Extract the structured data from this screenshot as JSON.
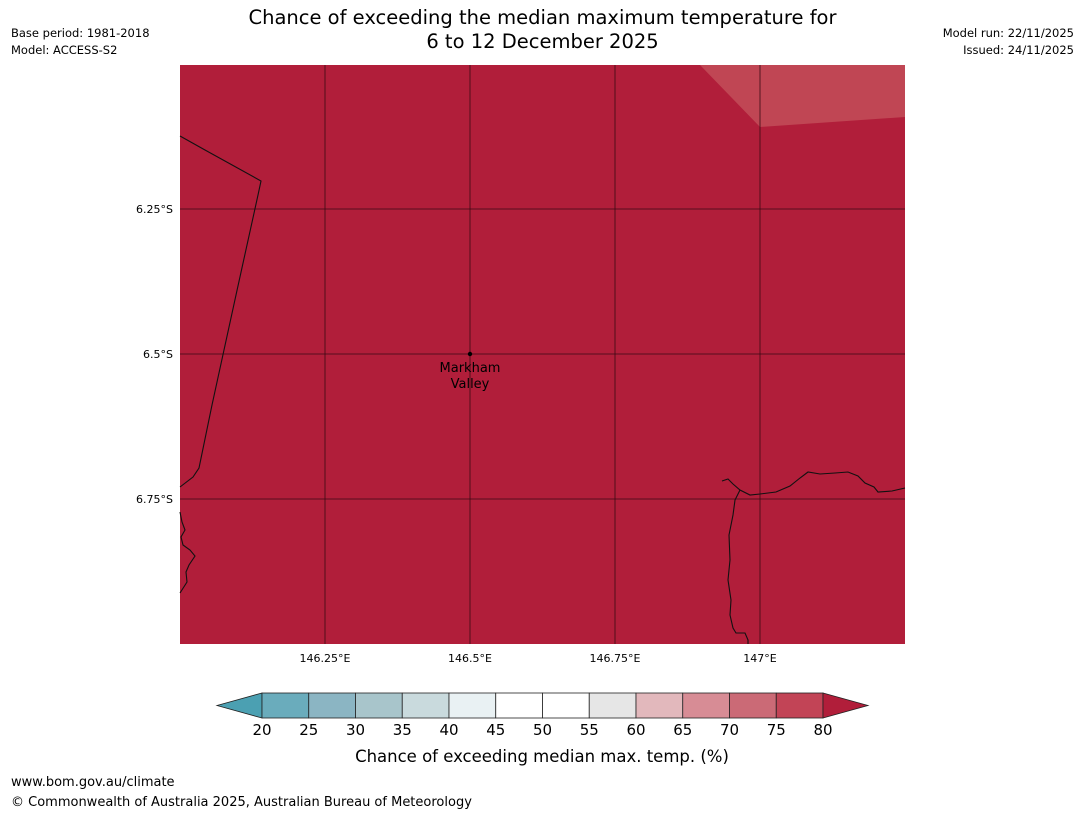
{
  "header": {
    "base_period": "Base period: 1981-2018",
    "model": "Model: ACCESS-S2",
    "model_run": "Model run: 22/11/2025",
    "issued": "Issued: 24/11/2025"
  },
  "title": {
    "line1": "Chance of exceeding the median maximum temperature for",
    "line2": "6 to 12 December 2025"
  },
  "map": {
    "lat_labels": [
      "6.25°S",
      "6.5°S",
      "6.75°S"
    ],
    "lon_labels": [
      "146.25°E",
      "146.5°E",
      "146.75°E",
      "147°E"
    ],
    "place": {
      "name_line1": "Markham",
      "name_line2": "Valley"
    },
    "fill_color": "#b11e3a",
    "lighter_fill_color": "#c04654"
  },
  "colorbar": {
    "ticks": [
      "20",
      "25",
      "30",
      "35",
      "40",
      "45",
      "50",
      "55",
      "60",
      "65",
      "70",
      "75",
      "80"
    ],
    "colors": [
      "#6aacbc",
      "#8bb5c3",
      "#a8c5cb",
      "#c9dadd",
      "#e9f1f3",
      "#ffffff",
      "#ffffff",
      "#e6e6e6",
      "#e2b8bc",
      "#d78c95",
      "#cb6a76",
      "#c24456"
    ],
    "under_color": "#4ba0b2",
    "over_color": "#b11e3a",
    "label": "Chance of exceeding median max. temp. (%)"
  },
  "footer": {
    "url": "www.bom.gov.au/climate",
    "copyright": "© Commonwealth of Australia 2025, Australian Bureau of Meteorology"
  }
}
